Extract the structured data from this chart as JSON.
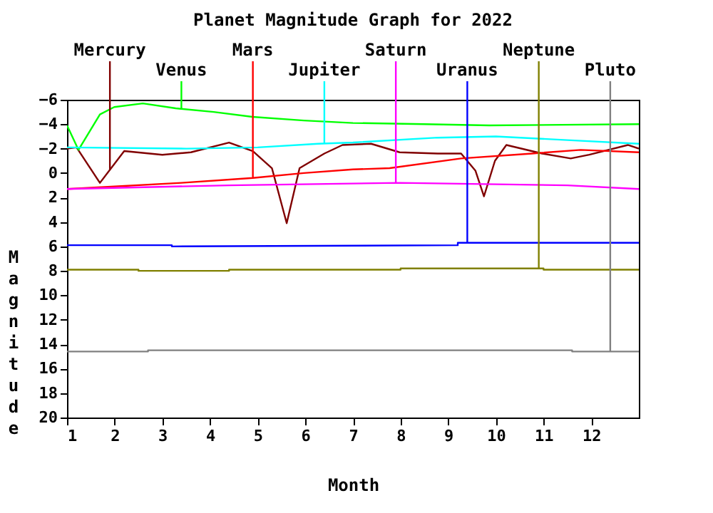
{
  "chart_data": {
    "type": "line",
    "title": "Planet Magnitude Graph for 2022",
    "xlabel": "Month",
    "ylabel": "Magnitude",
    "xlim": [
      1,
      13
    ],
    "xticks": [
      1,
      2,
      3,
      4,
      5,
      6,
      7,
      8,
      9,
      10,
      11,
      12
    ],
    "ylim": [
      20,
      -6
    ],
    "yticks": [
      -6,
      -4,
      -2,
      0,
      2,
      4,
      6,
      8,
      10,
      12,
      14,
      16,
      18,
      20
    ],
    "grid": false,
    "legend": false,
    "marker": "none",
    "line_style": "solid",
    "series": [
      {
        "name": "Mercury",
        "color": "#800000",
        "x": [
          1,
          1.2,
          1.69,
          2.2,
          3.0,
          3.6,
          4.4,
          4.9,
          5.3,
          5.61,
          5.88,
          6.4,
          6.78,
          7.38,
          7.98,
          8.78,
          9.27,
          9.57,
          9.75,
          9.98,
          10.22,
          10.97,
          11.57,
          11.96,
          12.77,
          13
        ],
        "values": [
          -2.0,
          -2.1,
          0.8,
          -1.8,
          -1.5,
          -1.7,
          -2.5,
          -1.8,
          -0.4,
          4.1,
          -0.4,
          -1.6,
          -2.3,
          -2.4,
          -1.7,
          -1.6,
          -1.6,
          -0.2,
          1.9,
          -1.0,
          -2.3,
          -1.6,
          -1.2,
          -1.5,
          -2.3,
          -2.0
        ]
      },
      {
        "name": "Venus",
        "color": "#00ff00",
        "x": [
          1,
          1.24,
          1.69,
          1.99,
          2.59,
          3.28,
          4.08,
          4.89,
          5.97,
          7.0,
          8.5,
          9.86,
          13
        ],
        "values": [
          -3.9,
          -1.9,
          -4.8,
          -5.4,
          -5.7,
          -5.3,
          -5.0,
          -4.6,
          -4.3,
          -4.1,
          -4.0,
          -3.9,
          -4.0
        ]
      },
      {
        "name": "Mars",
        "color": "#ff0000",
        "x": [
          1,
          1.5,
          3.4,
          4.9,
          5.97,
          7.0,
          7.77,
          9.27,
          10.76,
          11.78,
          13
        ],
        "values": [
          1.3,
          1.2,
          0.8,
          0.4,
          0.0,
          -0.3,
          -0.4,
          -1.2,
          -1.6,
          -1.9,
          -1.7
        ]
      },
      {
        "name": "Jupiter",
        "color": "#00ffff",
        "x": [
          1,
          3.5,
          5.0,
          6.27,
          7.0,
          8.78,
          10.0,
          11.5,
          13
        ],
        "values": [
          -2.1,
          -2.0,
          -2.1,
          -2.4,
          -2.5,
          -2.9,
          -3.0,
          -2.7,
          -2.4
        ]
      },
      {
        "name": "Saturn",
        "color": "#ff00ff",
        "x": [
          1,
          4.4,
          7.98,
          11.5,
          13
        ],
        "values": [
          1.3,
          1.0,
          0.8,
          1.0,
          1.3
        ]
      },
      {
        "name": "Uranus",
        "color": "#0000ff",
        "x": [
          1,
          3.2,
          3.2,
          9.2,
          9.2,
          13
        ],
        "values": [
          5.9,
          5.9,
          6.0,
          5.9,
          5.7,
          5.7
        ]
      },
      {
        "name": "Neptune",
        "color": "#808000",
        "x": [
          1,
          2.5,
          2.5,
          4.4,
          4.4,
          8.0,
          8.0,
          11.0,
          11.0,
          13
        ],
        "values": [
          7.9,
          7.9,
          8.0,
          8.0,
          7.9,
          7.9,
          7.8,
          7.8,
          7.9,
          7.9
        ]
      },
      {
        "name": "Pluto",
        "color": "#808080",
        "x": [
          1,
          2.7,
          2.7,
          11.6,
          11.6,
          13
        ],
        "values": [
          14.6,
          14.6,
          14.5,
          14.5,
          14.6,
          14.6
        ]
      }
    ]
  }
}
